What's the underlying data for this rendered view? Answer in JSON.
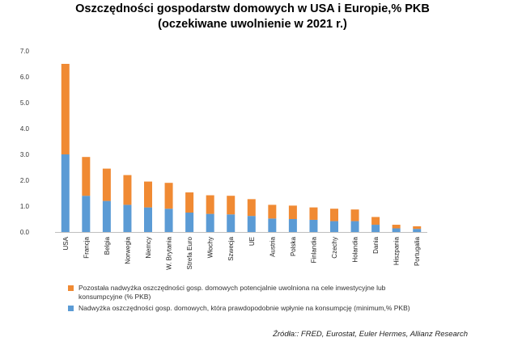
{
  "title_line1": "Oszczędności gospodarstw domowych w USA i Europie,% PKB",
  "title_line2": "(oczekiwane uwolnienie w 2021 r.)",
  "colors": {
    "orange": "#F08A33",
    "blue": "#5B9BD5",
    "axis": "#bfbfbf"
  },
  "chart_data": {
    "type": "bar",
    "stacked": true,
    "categories": [
      "USA",
      "Francja",
      "Belgia",
      "Norwegia",
      "Niemcy",
      "W. Brytania",
      "Strefa Euro",
      "Włochy",
      "Szwecja",
      "UE",
      "Austria",
      "Polska",
      "Finlandia",
      "Czechy",
      "Holandia",
      "Dania",
      "Hiszpania",
      "Portugalia"
    ],
    "series": [
      {
        "name": "Nadwyżka oszczędności gosp. domowych, która prawdopodobnie wpłynie na konsumpcję (minimum,% PKB)",
        "color": "#5B9BD5",
        "values": [
          3.0,
          1.4,
          1.2,
          1.05,
          0.95,
          0.9,
          0.75,
          0.7,
          0.68,
          0.62,
          0.52,
          0.5,
          0.47,
          0.42,
          0.42,
          0.28,
          0.14,
          0.12
        ]
      },
      {
        "name": "Pozostała nadwyżka oszczędności gosp. domowych potencjalnie uwolniona na cele inwestycyjne lub konsumpcyjne (% PKB)",
        "color": "#F08A33",
        "values": [
          3.5,
          1.5,
          1.25,
          1.15,
          1.0,
          1.0,
          0.78,
          0.72,
          0.72,
          0.65,
          0.53,
          0.52,
          0.48,
          0.48,
          0.45,
          0.3,
          0.14,
          0.1
        ]
      }
    ],
    "ylim": [
      0,
      7
    ],
    "yticks": [
      "0.0",
      "1.0",
      "2.0",
      "3.0",
      "4.0",
      "5.0",
      "6.0",
      "7.0"
    ],
    "legend_position": "bottom",
    "grid": false
  },
  "legend": {
    "item1": "Pozostała nadwyżka oszczędności gosp. domowych potencjalnie uwolniona na cele inwestycyjne lub konsumpcyjne (% PKB)",
    "item2": "Nadwyżka oszczędności gosp. domowych, która prawdopodobnie wpłynie na konsumpcję (minimum,% PKB)"
  },
  "source": "Źródła:: FRED, Eurostat, Euler Hermes, Allianz Research"
}
